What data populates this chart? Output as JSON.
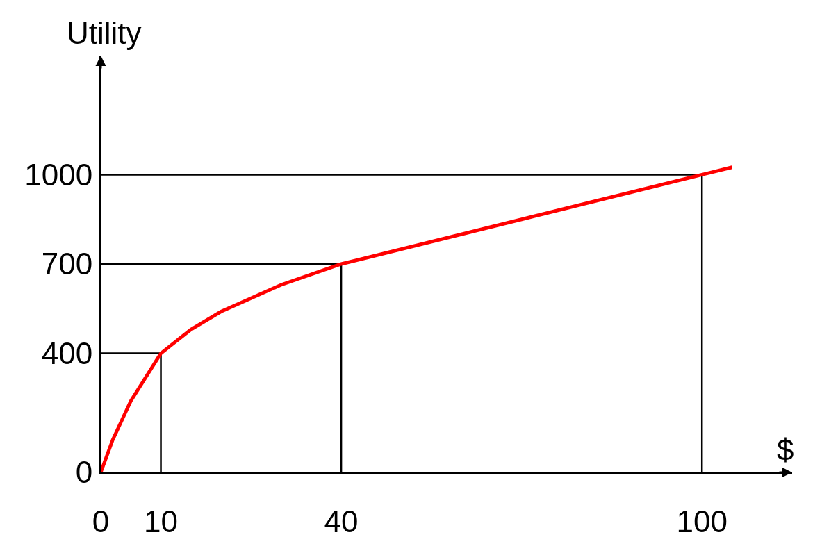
{
  "chart_data": {
    "type": "line",
    "xlabel": "$",
    "ylabel": "Utility",
    "xlim": [
      0,
      115
    ],
    "ylim": [
      0,
      1400
    ],
    "xticks": [
      0,
      10,
      40,
      100
    ],
    "yticks": [
      0,
      400,
      700,
      1000
    ],
    "marker": "none",
    "line_style": "solid",
    "series": [
      {
        "color": "#000000",
        "x": [
          0,
          10,
          10
        ],
        "values": [
          400,
          400,
          0
        ]
      },
      {
        "color": "#000000",
        "x": [
          0,
          40,
          40
        ],
        "values": [
          700,
          700,
          0
        ]
      },
      {
        "color": "#000000",
        "x": [
          0,
          100,
          100
        ],
        "values": [
          1000,
          1000,
          0
        ]
      },
      {
        "color": "#ff0000",
        "x": [
          0,
          2,
          5,
          10,
          15,
          20,
          30,
          40,
          70,
          100,
          105
        ],
        "values": [
          0,
          110,
          240,
          400,
          480,
          540,
          630,
          700,
          850,
          1000,
          1025
        ]
      }
    ]
  }
}
